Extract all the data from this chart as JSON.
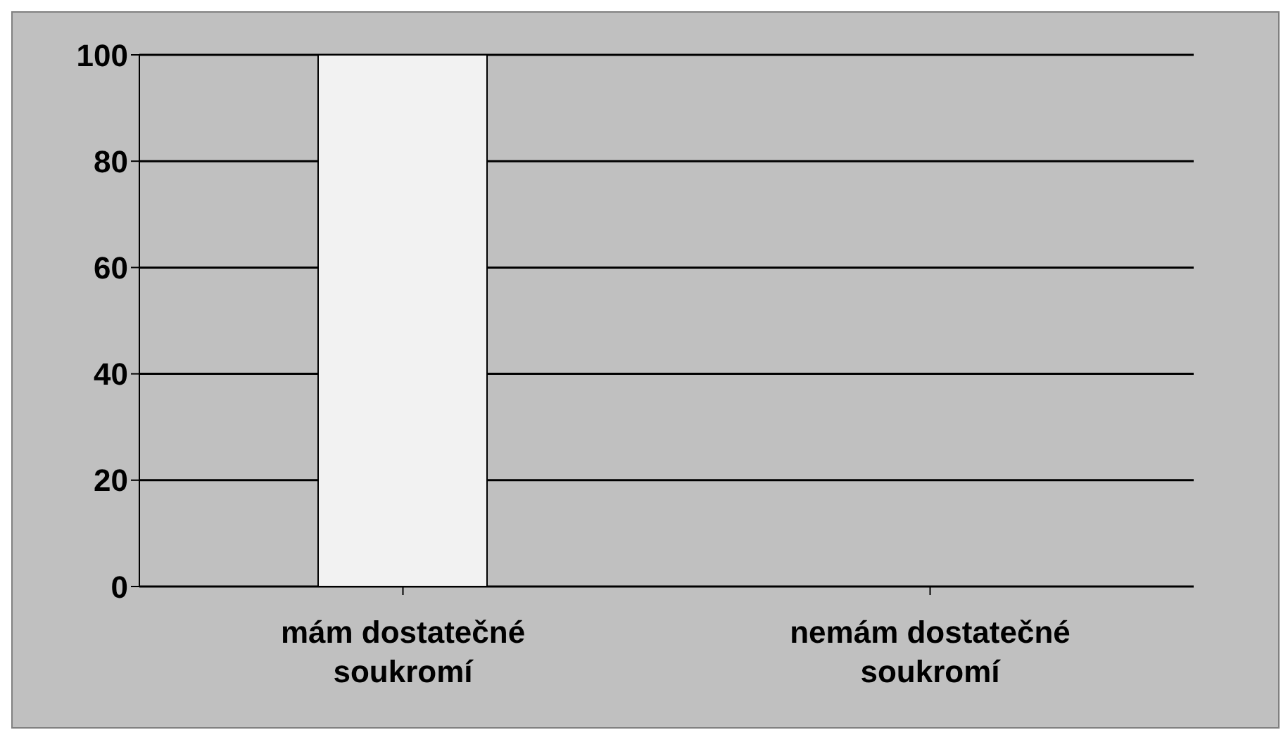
{
  "chart_data": {
    "type": "bar",
    "categories": [
      "mám dostatečné soukromí",
      "nemám dostatečné soukromí"
    ],
    "values": [
      100,
      0
    ],
    "colors": [
      "#f2f2f2",
      "#c0c000"
    ],
    "ylim": [
      0,
      100
    ],
    "yticks": [
      0,
      20,
      40,
      60,
      80,
      100
    ],
    "grid": "y"
  }
}
